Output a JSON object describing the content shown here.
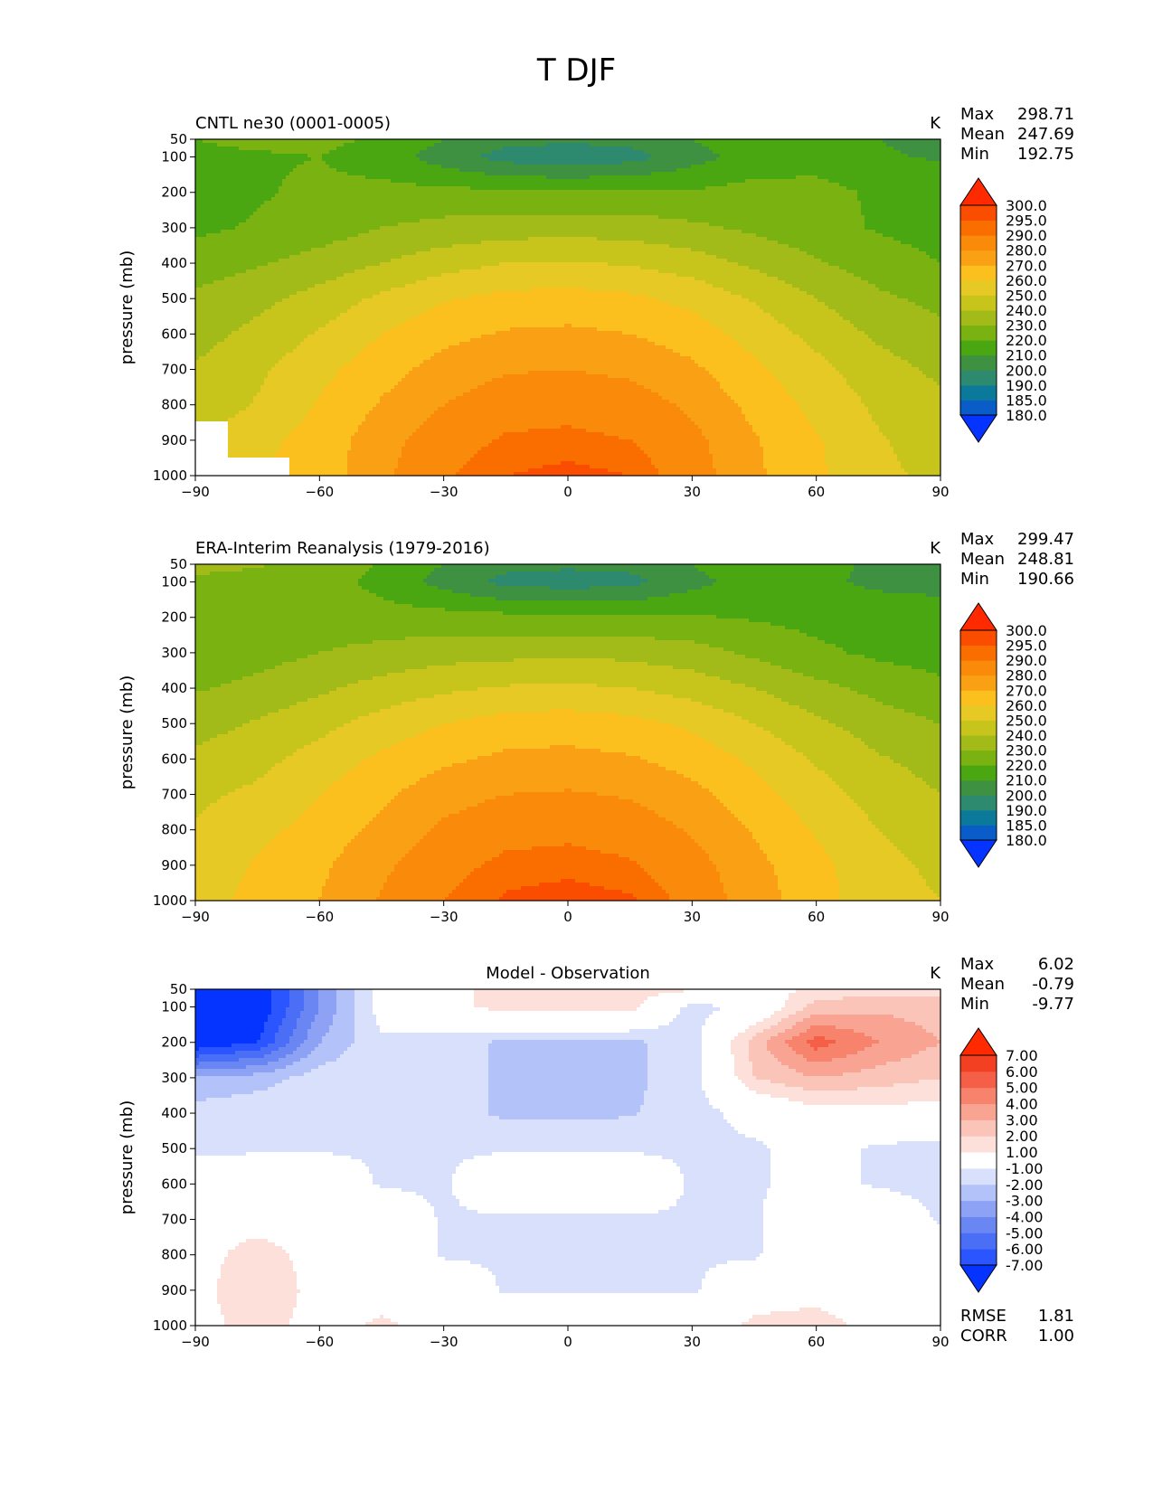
{
  "figure_title": "T DJF",
  "chart_data": [
    {
      "type": "contour",
      "panel": "test",
      "title_left": "CNTL ne30 (0001-0005)",
      "title_center": "",
      "units": "K",
      "xlabel": "",
      "ylabel": "pressure (mb)",
      "xlim": [
        -90,
        90
      ],
      "ylim": [
        1000,
        50
      ],
      "xticks": [
        -90,
        -60,
        -30,
        0,
        30,
        60,
        90
      ],
      "yticks": [
        50,
        100,
        200,
        300,
        400,
        500,
        600,
        700,
        800,
        900,
        1000
      ],
      "stats": [
        {
          "label": "Max",
          "value": "298.71"
        },
        {
          "label": "Mean",
          "value": "247.69"
        },
        {
          "label": "Min",
          "value": "192.75"
        }
      ],
      "footer_stats": [],
      "levels": [
        180,
        185,
        190,
        200,
        210,
        220,
        230,
        240,
        250,
        260,
        270,
        280,
        290,
        295,
        300
      ],
      "level_labels": [
        "180.0",
        "185.0",
        "190.0",
        "200.0",
        "210.0",
        "220.0",
        "230.0",
        "240.0",
        "250.0",
        "260.0",
        "270.0",
        "280.0",
        "290.0",
        "295.0",
        "300.0"
      ],
      "colors": [
        "#0533ff",
        "#0a5cc8",
        "#0b7a9a",
        "#2e8a6e",
        "#3e9140",
        "#4aa712",
        "#7ab212",
        "#a3bb18",
        "#c7c51c",
        "#e6c924",
        "#fbbf1e",
        "#faa014",
        "#fa8a0a",
        "#fa6e00",
        "#fa4d00",
        "#ff2a00"
      ],
      "field": {
        "lat": [
          -90,
          -75,
          -60,
          -45,
          -30,
          -15,
          0,
          15,
          30,
          45,
          60,
          75,
          90
        ],
        "lev": [
          50,
          100,
          200,
          300,
          400,
          500,
          600,
          700,
          800,
          900,
          1000
        ],
        "values": [
          [
            220,
            222,
            222,
            219,
            210,
            203,
            202,
            203,
            210,
            218,
            215,
            210,
            208
          ],
          [
            218,
            219,
            220,
            215,
            205,
            196,
            194,
            196,
            206,
            214,
            215,
            211,
            209
          ],
          [
            217,
            219,
            222,
            223,
            223,
            222,
            221,
            222,
            221,
            224,
            224,
            218,
            217
          ],
          [
            218,
            221,
            225,
            230,
            233,
            235,
            236,
            235,
            232,
            228,
            224,
            219,
            216
          ],
          [
            225,
            229,
            234,
            240,
            246,
            250,
            251,
            249,
            245,
            238,
            231,
            225,
            220
          ],
          [
            232,
            237,
            244,
            252,
            259,
            263,
            264,
            262,
            257,
            249,
            240,
            232,
            227
          ],
          [
            236,
            243,
            251,
            260,
            267,
            271,
            272,
            270,
            265,
            256,
            247,
            238,
            233
          ],
          [
            241,
            248,
            257,
            266,
            274,
            279,
            280,
            278,
            272,
            262,
            253,
            244,
            238
          ],
          [
            243,
            251,
            261,
            271,
            280,
            286,
            287,
            285,
            278,
            267,
            257,
            248,
            242
          ],
          [
            null,
            257,
            264,
            276,
            286,
            291,
            292,
            290,
            283,
            271,
            261,
            251,
            245
          ],
          [
            null,
            null,
            264,
            278,
            289,
            295,
            297,
            295,
            285,
            272,
            262,
            252,
            248
          ]
        ]
      }
    },
    {
      "type": "contour",
      "panel": "reference",
      "title_left": "ERA-Interim Reanalysis (1979-2016)",
      "title_center": "",
      "units": "K",
      "xlabel": "",
      "ylabel": "pressure (mb)",
      "xlim": [
        -90,
        90
      ],
      "ylim": [
        1000,
        50
      ],
      "xticks": [
        -90,
        -60,
        -30,
        0,
        30,
        60,
        90
      ],
      "yticks": [
        50,
        100,
        200,
        300,
        400,
        500,
        600,
        700,
        800,
        900,
        1000
      ],
      "stats": [
        {
          "label": "Max",
          "value": "299.47"
        },
        {
          "label": "Mean",
          "value": "248.81"
        },
        {
          "label": "Min",
          "value": "190.66"
        }
      ],
      "footer_stats": [],
      "levels": [
        180,
        185,
        190,
        200,
        210,
        220,
        230,
        240,
        250,
        260,
        270,
        280,
        290,
        295,
        300
      ],
      "level_labels": [
        "180.0",
        "185.0",
        "190.0",
        "200.0",
        "210.0",
        "220.0",
        "230.0",
        "240.0",
        "250.0",
        "260.0",
        "270.0",
        "280.0",
        "290.0",
        "295.0",
        "300.0"
      ],
      "colors": [
        "#0533ff",
        "#0a5cc8",
        "#0b7a9a",
        "#2e8a6e",
        "#3e9140",
        "#4aa712",
        "#7ab212",
        "#a3bb18",
        "#c7c51c",
        "#e6c924",
        "#fbbf1e",
        "#faa014",
        "#fa8a0a",
        "#fa6e00",
        "#fa4d00",
        "#ff2a00"
      ],
      "field": {
        "lat": [
          -90,
          -75,
          -60,
          -45,
          -30,
          -15,
          0,
          15,
          30,
          45,
          60,
          75,
          90
        ],
        "lev": [
          50,
          100,
          200,
          300,
          400,
          500,
          600,
          700,
          800,
          900,
          1000
        ],
        "values": [
          [
            233,
            231,
            227,
            219,
            210,
            203,
            202,
            203,
            210,
            218,
            213,
            208,
            206
          ],
          [
            228,
            226,
            224,
            217,
            206,
            197,
            195,
            197,
            207,
            214,
            212,
            208,
            206
          ],
          [
            225,
            224,
            225,
            224,
            224,
            223,
            222,
            222,
            221,
            219,
            217,
            216,
            216
          ],
          [
            221,
            226,
            230,
            233,
            236,
            237,
            238,
            237,
            234,
            228,
            222,
            218,
            216
          ],
          [
            229,
            233,
            238,
            244,
            248,
            251,
            252,
            250,
            246,
            240,
            233,
            227,
            222
          ],
          [
            236,
            241,
            247,
            254,
            260,
            264,
            265,
            263,
            258,
            250,
            242,
            235,
            230
          ],
          [
            242,
            247,
            254,
            262,
            268,
            272,
            273,
            271,
            266,
            258,
            249,
            241,
            236
          ],
          [
            248,
            252,
            260,
            268,
            276,
            280,
            281,
            279,
            273,
            264,
            254,
            246,
            240
          ],
          [
            251,
            257,
            264,
            273,
            282,
            287,
            288,
            286,
            279,
            269,
            259,
            250,
            245
          ],
          [
            254,
            261,
            268,
            278,
            287,
            292,
            293,
            291,
            284,
            273,
            263,
            253,
            248
          ],
          [
            256,
            263,
            270,
            281,
            290,
            296,
            298,
            296,
            287,
            275,
            264,
            254,
            250
          ]
        ]
      }
    },
    {
      "type": "contour",
      "panel": "difference",
      "title_left": "",
      "title_center": "Model - Observation",
      "units": "K",
      "xlabel": "",
      "ylabel": "pressure (mb)",
      "xlim": [
        -90,
        90
      ],
      "ylim": [
        1000,
        50
      ],
      "xticks": [
        -90,
        -60,
        -30,
        0,
        30,
        60,
        90
      ],
      "yticks": [
        50,
        100,
        200,
        300,
        400,
        500,
        600,
        700,
        800,
        900,
        1000
      ],
      "stats": [
        {
          "label": "Max",
          "value": "6.02"
        },
        {
          "label": "Mean",
          "value": "-0.79"
        },
        {
          "label": "Min",
          "value": "-9.77"
        }
      ],
      "footer_stats": [
        {
          "label": "RMSE",
          "value": "1.81"
        },
        {
          "label": "CORR",
          "value": "1.00"
        }
      ],
      "levels": [
        -7,
        -6,
        -5,
        -4,
        -3,
        -2,
        -1,
        1,
        2,
        3,
        4,
        5,
        6,
        7
      ],
      "level_labels": [
        "-7.00",
        "-6.00",
        "-5.00",
        "-4.00",
        "-3.00",
        "-2.00",
        "-1.00",
        "1.00",
        "2.00",
        "3.00",
        "4.00",
        "5.00",
        "6.00",
        "7.00"
      ],
      "colors": [
        "#0533ff",
        "#2a55ff",
        "#4a6ef5",
        "#6a86f2",
        "#8ea2f5",
        "#b4c2fa",
        "#d8e0fb",
        "#ffffff",
        "#fde0da",
        "#fbc4b8",
        "#f9a392",
        "#f7836c",
        "#f55f47",
        "#f33f22",
        "#ff2a00"
      ],
      "field": {
        "lat": [
          -90,
          -75,
          -60,
          -45,
          -30,
          -15,
          0,
          15,
          30,
          45,
          60,
          75,
          90
        ],
        "lev": [
          50,
          100,
          200,
          300,
          400,
          500,
          600,
          700,
          800,
          900,
          1000
        ],
        "values": [
          [
            -9,
            -8,
            -4,
            -0.5,
            0.5,
            1.5,
            1.2,
            1.5,
            1.2,
            0.5,
            1.2,
            1.5,
            1.5
          ],
          [
            -9.5,
            -8,
            -4,
            -0.5,
            0.5,
            1.5,
            1.5,
            1.5,
            -1.5,
            -0.5,
            2.5,
            2.8,
            2.5
          ],
          [
            -8,
            -7,
            -3,
            -1.2,
            -1.5,
            -2.2,
            -2.2,
            -2.2,
            -1.5,
            2.5,
            5.5,
            4,
            3
          ],
          [
            -3,
            -2.5,
            -1.5,
            -1.2,
            -1.5,
            -2.2,
            -2.2,
            -2.2,
            -1.5,
            2,
            3,
            2.5,
            2
          ],
          [
            -1.5,
            -1.2,
            -1.2,
            -1.2,
            -1.5,
            -2.2,
            -2.2,
            -2.1,
            -1.5,
            -0.5,
            0.5,
            0.5,
            0.5
          ],
          [
            -1.5,
            -1.2,
            -1.2,
            -1.2,
            -1.2,
            -1.2,
            -1.2,
            -1.2,
            -1.2,
            -1.2,
            -0.5,
            -1.2,
            -1.5
          ],
          [
            0.5,
            0.5,
            0.5,
            -1.2,
            -1.2,
            0.5,
            0.5,
            0.5,
            -1.2,
            -1.2,
            -0.5,
            -1.2,
            -1.5
          ],
          [
            0.5,
            0.5,
            0.5,
            0.5,
            -1.2,
            -1.2,
            -1.2,
            -1.2,
            -1.2,
            -1.2,
            0.5,
            0.5,
            -1.2
          ],
          [
            0.5,
            1.5,
            0.5,
            0.5,
            -1.2,
            -1.2,
            -1.2,
            -1.2,
            -1.2,
            -1.2,
            0.5,
            0.5,
            0.5
          ],
          [
            0.5,
            2,
            0.5,
            0.5,
            0.5,
            -1.2,
            -1.2,
            -1.2,
            -1.2,
            0.5,
            0.5,
            0.5,
            0.5
          ],
          [
            0.5,
            1.5,
            0.5,
            1.2,
            0.5,
            0.5,
            0.5,
            0.5,
            0.5,
            1.2,
            1.5,
            0.5,
            0.5
          ]
        ]
      }
    }
  ]
}
